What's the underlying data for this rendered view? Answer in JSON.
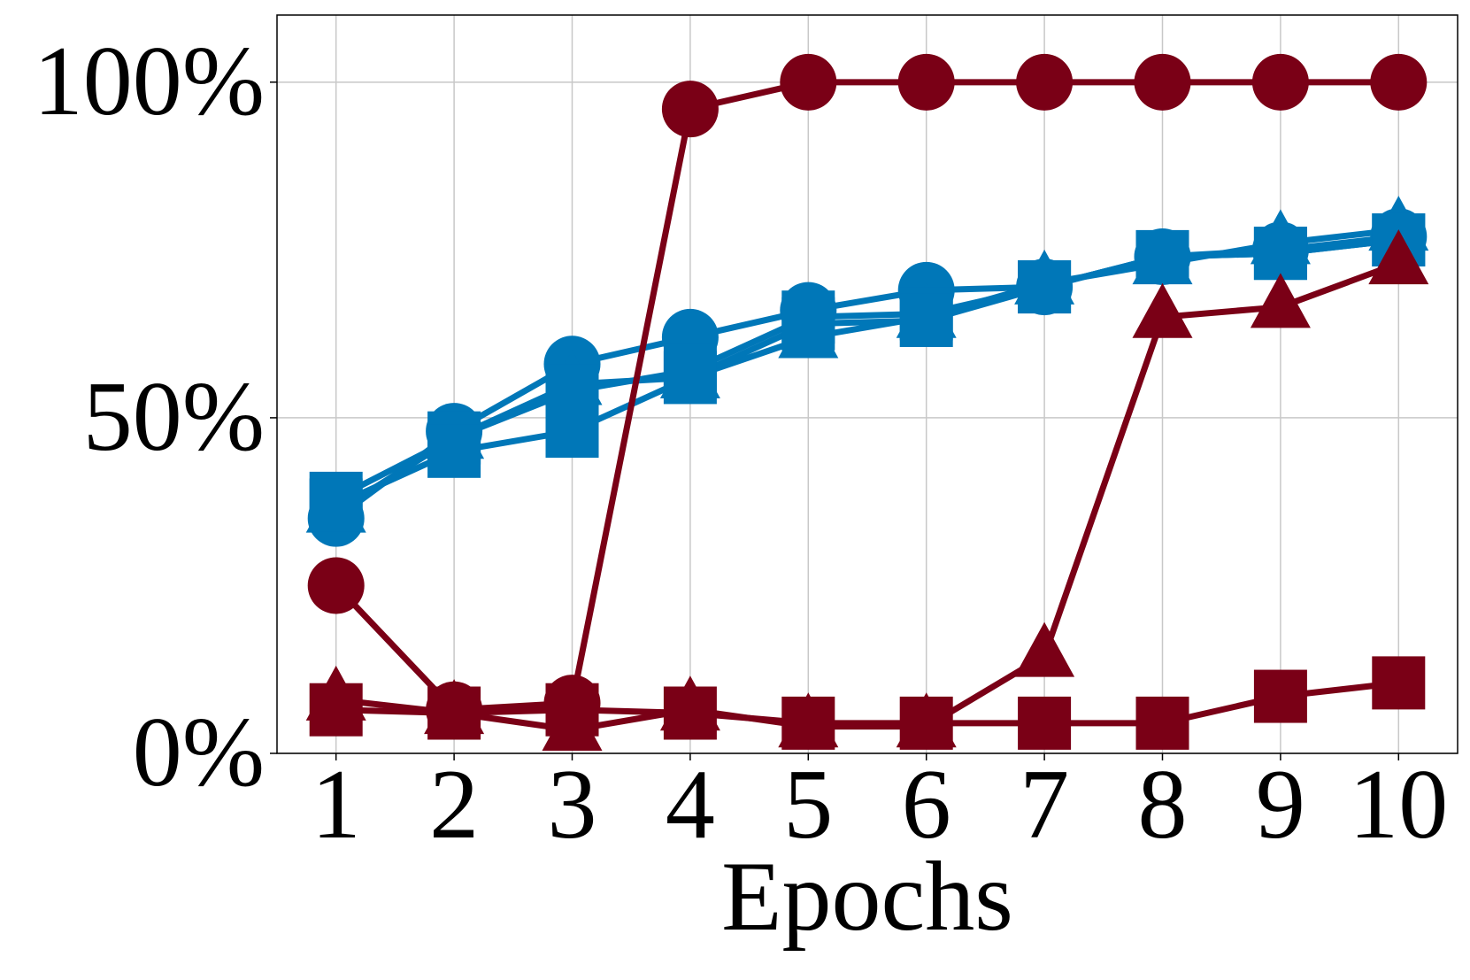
{
  "chart_data": {
    "type": "line",
    "xlabel": "Epochs",
    "ylabel": "",
    "x": [
      1,
      2,
      3,
      4,
      5,
      6,
      7,
      8,
      9,
      10
    ],
    "xticks": [
      "1",
      "2",
      "3",
      "4",
      "5",
      "6",
      "7",
      "8",
      "9",
      "10"
    ],
    "yticks": [
      {
        "value": 0,
        "label": "0%"
      },
      {
        "value": 50,
        "label": "50%"
      },
      {
        "value": 100,
        "label": "100%"
      }
    ],
    "xlim": [
      0.5,
      10.5
    ],
    "ylim": [
      0,
      110
    ],
    "grid": true,
    "series": [
      {
        "color": "#0077b8",
        "marker": "circle",
        "values": [
          35,
          48,
          58,
          62,
          66,
          69,
          69.5,
          74,
          75,
          77
        ]
      },
      {
        "color": "#0077b8",
        "marker": "triangle",
        "values": [
          36,
          47,
          55,
          56,
          62,
          65,
          70,
          73,
          76,
          78
        ]
      },
      {
        "color": "#0077b8",
        "marker": "square",
        "values": [
          38,
          47,
          54,
          57,
          65,
          65.5,
          69.5,
          74,
          74.5,
          76.5
        ]
      },
      {
        "color": "#0077b8",
        "marker": "square",
        "values": [
          37,
          45,
          48,
          56,
          64,
          64.5,
          69.5,
          74,
          74.5,
          76.5
        ]
      },
      {
        "color": "#7a0016",
        "marker": "circle",
        "values": [
          25,
          6.5,
          7.5,
          96,
          100,
          100,
          100,
          100,
          100,
          100
        ]
      },
      {
        "color": "#7a0016",
        "marker": "triangle",
        "values": [
          8,
          6,
          3.5,
          6.5,
          4,
          4,
          14.5,
          65,
          66.5,
          73
        ]
      },
      {
        "color": "#7a0016",
        "marker": "square",
        "values": [
          6.5,
          6,
          6.5,
          6,
          4.5,
          4.5,
          4.5,
          4.5,
          8.5,
          10.5
        ]
      }
    ]
  }
}
